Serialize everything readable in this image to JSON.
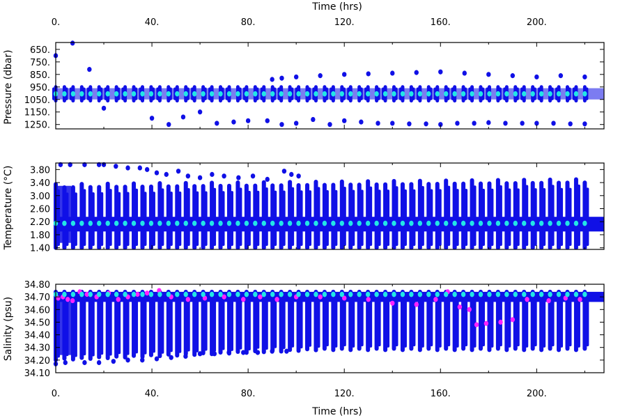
{
  "chart_data": {
    "type": "scatter",
    "x_title": "Time (hrs)",
    "x_ticks": [
      "0.",
      "40.",
      "80.",
      "120.",
      "160.",
      "200."
    ],
    "x_tick_values": [
      0,
      40,
      80,
      120,
      160,
      200
    ],
    "xlim": [
      0,
      228
    ],
    "panels": [
      {
        "id": "pressure",
        "ylabel": "Pressure (dbar)",
        "inverted": true,
        "ylim": [
          595,
          1285
        ],
        "ticks": [
          650,
          750,
          850,
          950,
          1050,
          1150,
          1250
        ],
        "tick_labels": [
          "650.",
          "750.",
          "850.",
          "950.",
          "1050.",
          "1150.",
          "1250."
        ],
        "band": [
          950,
          1060
        ],
        "mean": 1005,
        "shallow_dots": [
          [
            0,
            700
          ],
          [
            7,
            600
          ],
          [
            14,
            810
          ],
          [
            90,
            890
          ],
          [
            94,
            880
          ],
          [
            100,
            870
          ],
          [
            110,
            860
          ],
          [
            120,
            850
          ],
          [
            130,
            845
          ],
          [
            140,
            840
          ],
          [
            150,
            835
          ],
          [
            160,
            830
          ],
          [
            170,
            840
          ],
          [
            180,
            850
          ],
          [
            190,
            860
          ],
          [
            200,
            870
          ],
          [
            210,
            860
          ],
          [
            220,
            870
          ]
        ],
        "deep_dots": [
          [
            20,
            1120
          ],
          [
            40,
            1200
          ],
          [
            47,
            1250
          ],
          [
            53,
            1190
          ],
          [
            60,
            1150
          ],
          [
            67,
            1240
          ],
          [
            74,
            1230
          ],
          [
            80,
            1220
          ],
          [
            88,
            1220
          ],
          [
            94,
            1250
          ],
          [
            100,
            1240
          ],
          [
            107,
            1210
          ],
          [
            114,
            1250
          ],
          [
            120,
            1220
          ],
          [
            127,
            1230
          ],
          [
            134,
            1240
          ],
          [
            140,
            1240
          ],
          [
            147,
            1245
          ],
          [
            154,
            1245
          ],
          [
            160,
            1250
          ],
          [
            167,
            1240
          ],
          [
            174,
            1240
          ],
          [
            180,
            1235
          ],
          [
            187,
            1240
          ],
          [
            194,
            1240
          ],
          [
            200,
            1240
          ],
          [
            207,
            1240
          ],
          [
            214,
            1245
          ],
          [
            220,
            1245
          ]
        ]
      },
      {
        "id": "temperature",
        "ylabel": "Temperature (°C)",
        "inverted": false,
        "ylim": [
          1.35,
          4.0
        ],
        "ticks": [
          1.4,
          1.8,
          2.2,
          2.6,
          3.0,
          3.4,
          3.8
        ],
        "tick_labels": [
          "1.40",
          "1.80",
          "2.20",
          "2.60",
          "3.00",
          "3.40",
          "3.80"
        ],
        "mean": 2.15,
        "bar_top_start": 3.3,
        "bar_top_end": 3.45,
        "bar_bottom": 1.4,
        "band": [
          1.9,
          2.35
        ],
        "top_dots": [
          [
            2,
            3.95
          ],
          [
            6,
            3.95
          ],
          [
            12,
            3.95
          ],
          [
            18,
            3.95
          ],
          [
            20,
            3.95
          ],
          [
            25,
            3.9
          ],
          [
            30,
            3.85
          ],
          [
            35,
            3.85
          ],
          [
            38,
            3.8
          ],
          [
            42,
            3.7
          ],
          [
            46,
            3.65
          ],
          [
            51,
            3.75
          ],
          [
            55,
            3.6
          ],
          [
            60,
            3.55
          ],
          [
            65,
            3.65
          ],
          [
            70,
            3.6
          ],
          [
            76,
            3.55
          ],
          [
            82,
            3.6
          ],
          [
            88,
            3.5
          ],
          [
            95,
            3.75
          ],
          [
            98,
            3.65
          ],
          [
            101,
            3.6
          ]
        ]
      },
      {
        "id": "salinity",
        "ylabel": "Salinity (psu)",
        "inverted": false,
        "ylim": [
          34.1,
          34.8
        ],
        "ticks": [
          34.1,
          34.2,
          34.3,
          34.4,
          34.5,
          34.6,
          34.7,
          34.8
        ],
        "tick_labels": [
          "34.10",
          "34.20",
          "34.30",
          "34.40",
          "34.50",
          "34.60",
          "34.70",
          "34.80"
        ],
        "mean": 34.72,
        "bar_top": 34.74,
        "bar_bottom_start": 34.2,
        "bar_bottom_end": 34.28,
        "band": [
          34.66,
          34.74
        ],
        "bottom_dots": [
          [
            0,
            34.17
          ],
          [
            4,
            34.18
          ],
          [
            12,
            34.18
          ],
          [
            18,
            34.18
          ],
          [
            24,
            34.19
          ],
          [
            30,
            34.2
          ],
          [
            36,
            34.2
          ],
          [
            42,
            34.21
          ],
          [
            48,
            34.22
          ],
          [
            54,
            34.23
          ],
          [
            60,
            34.25
          ],
          [
            66,
            34.25
          ],
          [
            72,
            34.26
          ],
          [
            78,
            34.26
          ],
          [
            84,
            34.26
          ],
          [
            90,
            34.27
          ],
          [
            96,
            34.27
          ]
        ],
        "magenta_dots": [
          [
            1,
            34.69
          ],
          [
            3,
            34.7
          ],
          [
            5,
            34.68
          ],
          [
            7,
            34.67
          ],
          [
            10,
            34.74
          ],
          [
            13,
            34.72
          ],
          [
            17,
            34.7
          ],
          [
            22,
            34.73
          ],
          [
            26,
            34.68
          ],
          [
            30,
            34.7
          ],
          [
            34,
            34.72
          ],
          [
            38,
            34.73
          ],
          [
            43,
            34.75
          ],
          [
            48,
            34.7
          ],
          [
            55,
            34.68
          ],
          [
            62,
            34.69
          ],
          [
            70,
            34.7
          ],
          [
            78,
            34.68
          ],
          [
            85,
            34.7
          ],
          [
            92,
            34.68
          ],
          [
            100,
            34.7
          ],
          [
            110,
            34.7
          ],
          [
            120,
            34.69
          ],
          [
            130,
            34.68
          ],
          [
            140,
            34.65
          ],
          [
            150,
            34.64
          ],
          [
            158,
            34.68
          ],
          [
            163,
            34.74
          ],
          [
            168,
            34.62
          ],
          [
            172,
            34.6
          ],
          [
            175,
            34.48
          ],
          [
            179,
            34.49
          ],
          [
            185,
            34.5
          ],
          [
            190,
            34.52
          ],
          [
            196,
            34.68
          ],
          [
            205,
            34.67
          ],
          [
            212,
            34.69
          ],
          [
            218,
            34.68
          ]
        ]
      }
    ]
  },
  "colors": {
    "points": "#1010e6",
    "mean": "#22e6e6",
    "highlight": "#ff22ff",
    "axis": "#000000",
    "background": "#ffffff"
  }
}
